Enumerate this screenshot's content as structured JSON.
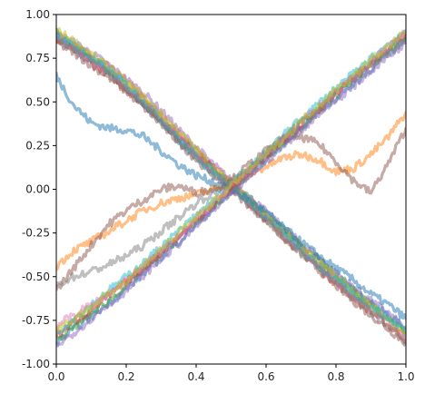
{
  "chart_data": {
    "type": "line",
    "title": "",
    "xlabel": "",
    "ylabel": "",
    "xlim": [
      0.0,
      1.0
    ],
    "ylim": [
      -1.0,
      1.0
    ],
    "grid": false,
    "legend": "none",
    "xticks": [
      "0.0",
      "0.2",
      "0.4",
      "0.6",
      "0.8",
      "1.0"
    ],
    "yticks": [
      "1.00",
      "0.75",
      "0.50",
      "0.25",
      "0.00",
      "-0.25",
      "-0.50",
      "-0.75",
      "-1.00"
    ],
    "x": [
      0.0,
      0.05,
      0.1,
      0.15,
      0.2,
      0.25,
      0.3,
      0.35,
      0.4,
      0.45,
      0.5,
      0.55,
      0.6,
      0.65,
      0.7,
      0.75,
      0.8,
      0.85,
      0.9,
      0.95,
      1.0
    ],
    "series": [
      {
        "color": "#1f77b4",
        "values": [
          0.88,
          0.8,
          0.74,
          0.67,
          0.58,
          0.48,
          0.38,
          0.28,
          0.18,
          0.1,
          0.02,
          -0.07,
          -0.16,
          -0.25,
          -0.34,
          -0.42,
          -0.5,
          -0.58,
          -0.65,
          -0.72,
          -0.8
        ]
      },
      {
        "color": "#ff7f0e",
        "values": [
          0.86,
          0.82,
          0.76,
          0.7,
          0.62,
          0.52,
          0.42,
          0.32,
          0.22,
          0.13,
          0.04,
          -0.06,
          -0.15,
          -0.24,
          -0.33,
          -0.43,
          -0.52,
          -0.6,
          -0.68,
          -0.75,
          -0.84
        ]
      },
      {
        "color": "#2ca02c",
        "values": [
          0.9,
          0.83,
          0.75,
          0.69,
          0.6,
          0.5,
          0.4,
          0.3,
          0.2,
          0.11,
          0.03,
          -0.05,
          -0.14,
          -0.23,
          -0.32,
          -0.4,
          -0.49,
          -0.57,
          -0.66,
          -0.73,
          -0.82
        ]
      },
      {
        "color": "#d62728",
        "values": [
          0.85,
          0.8,
          0.72,
          0.66,
          0.57,
          0.49,
          0.39,
          0.3,
          0.21,
          0.12,
          0.02,
          -0.08,
          -0.17,
          -0.27,
          -0.36,
          -0.45,
          -0.54,
          -0.62,
          -0.7,
          -0.78,
          -0.86
        ]
      },
      {
        "color": "#9467bd",
        "values": [
          0.89,
          0.84,
          0.78,
          0.71,
          0.63,
          0.55,
          0.45,
          0.34,
          0.24,
          0.14,
          0.05,
          -0.04,
          -0.13,
          -0.22,
          -0.31,
          -0.39,
          -0.48,
          -0.56,
          -0.64,
          -0.71,
          -0.8
        ]
      },
      {
        "color": "#8c564b",
        "values": [
          0.84,
          0.78,
          0.71,
          0.64,
          0.56,
          0.47,
          0.37,
          0.27,
          0.17,
          0.08,
          0.0,
          -0.09,
          -0.18,
          -0.28,
          -0.37,
          -0.46,
          -0.55,
          -0.64,
          -0.72,
          -0.8,
          -0.88
        ]
      },
      {
        "color": "#e377c2",
        "values": [
          0.87,
          0.81,
          0.73,
          0.68,
          0.59,
          0.51,
          0.41,
          0.31,
          0.19,
          0.09,
          0.01,
          -0.07,
          -0.16,
          -0.26,
          -0.35,
          -0.44,
          -0.53,
          -0.61,
          -0.69,
          -0.76,
          -0.85
        ]
      },
      {
        "color": "#bcbd22",
        "values": [
          0.91,
          0.85,
          0.77,
          0.7,
          0.61,
          0.53,
          0.43,
          0.33,
          0.23,
          0.12,
          0.03,
          -0.06,
          -0.15,
          -0.24,
          -0.33,
          -0.41,
          -0.5,
          -0.59,
          -0.67,
          -0.74,
          -0.83
        ]
      },
      {
        "color": "#17becf",
        "values": [
          0.88,
          0.82,
          0.75,
          0.68,
          0.6,
          0.5,
          0.4,
          0.29,
          0.19,
          0.1,
          0.02,
          -0.07,
          -0.16,
          -0.25,
          -0.35,
          -0.44,
          -0.52,
          -0.6,
          -0.67,
          -0.74,
          -0.81
        ]
      },
      {
        "color": "#1f77b4",
        "values": [
          0.65,
          0.48,
          0.38,
          0.35,
          0.34,
          0.3,
          0.22,
          0.14,
          0.08,
          0.04,
          0.0,
          -0.06,
          -0.13,
          -0.22,
          -0.3,
          -0.38,
          -0.45,
          -0.52,
          -0.6,
          -0.66,
          -0.74
        ]
      },
      {
        "color": "#7f7f7f",
        "values": [
          0.86,
          0.79,
          0.74,
          0.66,
          0.58,
          0.49,
          0.39,
          0.28,
          0.18,
          0.09,
          0.01,
          -0.08,
          -0.17,
          -0.27,
          -0.36,
          -0.45,
          -0.53,
          -0.62,
          -0.7,
          -0.78,
          -0.87
        ]
      },
      {
        "color": "#1f77b4",
        "values": [
          -0.88,
          -0.8,
          -0.73,
          -0.65,
          -0.57,
          -0.48,
          -0.39,
          -0.3,
          -0.2,
          -0.11,
          -0.02,
          0.08,
          0.17,
          0.26,
          0.35,
          0.44,
          0.52,
          0.6,
          0.69,
          0.77,
          0.86
        ]
      },
      {
        "color": "#ff7f0e",
        "values": [
          -0.44,
          -0.35,
          -0.3,
          -0.24,
          -0.18,
          -0.12,
          -0.08,
          -0.05,
          -0.03,
          0.0,
          0.03,
          0.08,
          0.13,
          0.18,
          0.2,
          0.17,
          0.1,
          0.12,
          0.2,
          0.3,
          0.44
        ]
      },
      {
        "color": "#8c564b",
        "values": [
          -0.58,
          -0.45,
          -0.32,
          -0.2,
          -0.12,
          -0.06,
          0.0,
          0.02,
          -0.02,
          0.0,
          0.05,
          0.14,
          0.22,
          0.28,
          0.3,
          0.26,
          0.16,
          0.05,
          -0.02,
          0.15,
          0.35
        ]
      },
      {
        "color": "#2ca02c",
        "values": [
          -0.86,
          -0.79,
          -0.71,
          -0.64,
          -0.55,
          -0.46,
          -0.37,
          -0.28,
          -0.19,
          -0.1,
          -0.01,
          0.09,
          0.18,
          0.27,
          0.36,
          0.45,
          0.54,
          0.63,
          0.71,
          0.79,
          0.88
        ]
      },
      {
        "color": "#d62728",
        "values": [
          -0.84,
          -0.76,
          -0.69,
          -0.61,
          -0.53,
          -0.45,
          -0.36,
          -0.27,
          -0.18,
          -0.09,
          0.0,
          0.1,
          0.19,
          0.28,
          0.37,
          0.46,
          0.55,
          0.64,
          0.72,
          0.8,
          0.89
        ]
      },
      {
        "color": "#9467bd",
        "values": [
          -0.9,
          -0.82,
          -0.74,
          -0.66,
          -0.58,
          -0.49,
          -0.4,
          -0.31,
          -0.21,
          -0.12,
          -0.03,
          0.07,
          0.16,
          0.25,
          0.34,
          0.43,
          0.51,
          0.59,
          0.68,
          0.76,
          0.84
        ]
      },
      {
        "color": "#17becf",
        "values": [
          -0.82,
          -0.74,
          -0.66,
          -0.58,
          -0.5,
          -0.42,
          -0.33,
          -0.24,
          -0.15,
          -0.06,
          0.03,
          0.12,
          0.21,
          0.31,
          0.4,
          0.49,
          0.58,
          0.66,
          0.75,
          0.83,
          0.91
        ]
      },
      {
        "color": "#e377c2",
        "values": [
          -0.78,
          -0.72,
          -0.66,
          -0.6,
          -0.52,
          -0.44,
          -0.35,
          -0.26,
          -0.17,
          -0.08,
          0.01,
          0.11,
          0.2,
          0.29,
          0.38,
          0.47,
          0.56,
          0.64,
          0.73,
          0.81,
          0.9
        ]
      },
      {
        "color": "#7f7f7f",
        "values": [
          -0.55,
          -0.5,
          -0.47,
          -0.43,
          -0.38,
          -0.32,
          -0.24,
          -0.16,
          -0.08,
          -0.02,
          0.04,
          0.12,
          0.21,
          0.3,
          0.38,
          0.46,
          0.55,
          0.63,
          0.71,
          0.79,
          0.86
        ]
      },
      {
        "color": "#bcbd22",
        "values": [
          -0.8,
          -0.74,
          -0.67,
          -0.6,
          -0.52,
          -0.43,
          -0.34,
          -0.25,
          -0.16,
          -0.07,
          0.02,
          0.11,
          0.2,
          0.29,
          0.39,
          0.48,
          0.57,
          0.65,
          0.74,
          0.82,
          0.9
        ]
      }
    ]
  }
}
